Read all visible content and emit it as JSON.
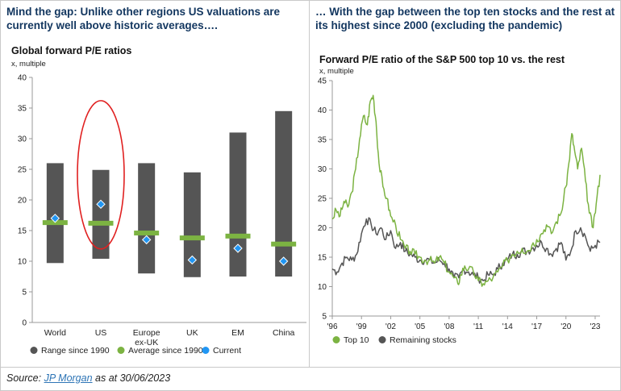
{
  "headlines": {
    "left": "Mind the gap: Unlike other regions US valuations are currently well above historic averages….",
    "right": "… With the gap between the top ten stocks and the rest at its highest since 2000 (excluding the pandemic)"
  },
  "source": {
    "prefix": "Source: ",
    "link": "JP Morgan",
    "suffix": " as at 30/06/2023"
  },
  "chart_data": [
    {
      "type": "bar",
      "title": "Global forward P/E ratios",
      "ylabel": "x, multiple",
      "ylim": [
        0,
        40
      ],
      "yticks": [
        "0",
        "5",
        "10",
        "15",
        "20",
        "25",
        "30",
        "35",
        "40"
      ],
      "categories": [
        "World",
        "US",
        "Europe ex-UK",
        "UK",
        "EM",
        "China"
      ],
      "category_labels": [
        [
          "World"
        ],
        [
          "US"
        ],
        [
          "Europe",
          "ex-UK"
        ],
        [
          "UK"
        ],
        [
          "EM"
        ],
        [
          "China"
        ]
      ],
      "series": [
        {
          "name": "Range since 1990",
          "color": "#555555",
          "low": [
            9.7,
            10.4,
            8.0,
            7.4,
            7.5,
            7.5
          ],
          "high": [
            26.0,
            24.9,
            26.0,
            24.5,
            31.0,
            34.5
          ]
        },
        {
          "name": "Average since 1990",
          "color": "#7cb342",
          "values": [
            16.3,
            16.2,
            14.6,
            13.8,
            14.1,
            12.8
          ]
        },
        {
          "name": "Current",
          "color": "#2196f3",
          "values": [
            17.0,
            19.3,
            13.5,
            10.2,
            12.1,
            10.0
          ]
        }
      ],
      "annotation": "Red ellipse highlighting US",
      "legend": [
        "Range since 1990",
        "Average since 1990",
        "Current"
      ]
    },
    {
      "type": "line",
      "title": "Forward P/E ratio of the S&P 500 top 10 vs. the rest",
      "ylabel": "x, multiple",
      "ylim": [
        5,
        45
      ],
      "yticks": [
        "5",
        "10",
        "15",
        "20",
        "25",
        "30",
        "35",
        "40",
        "45"
      ],
      "xlim": [
        1996,
        2023.5
      ],
      "xticks": [
        1996,
        1999,
        2002,
        2005,
        2008,
        2011,
        2014,
        2017,
        2020,
        2023
      ],
      "xtick_labels": [
        "'96",
        "'99",
        "'02",
        "'05",
        "'08",
        "'11",
        "'14",
        "'17",
        "'20",
        "'23"
      ],
      "series": [
        {
          "name": "Top 10",
          "color": "#7cb342",
          "x": [
            1996.0,
            1996.4,
            1996.8,
            1997.2,
            1997.6,
            1998.0,
            1998.4,
            1998.8,
            1999.2,
            1999.6,
            1999.9,
            2000.2,
            2000.5,
            2000.8,
            2001.2,
            2001.6,
            2002.0,
            2002.5,
            2003.0,
            2003.5,
            2004.0,
            2004.5,
            2005.0,
            2005.5,
            2006.0,
            2006.5,
            2007.0,
            2007.5,
            2008.0,
            2008.5,
            2008.9,
            2009.2,
            2009.6,
            2010.0,
            2010.5,
            2011.0,
            2011.5,
            2012.0,
            2012.5,
            2013.0,
            2013.5,
            2014.0,
            2014.5,
            2015.0,
            2015.5,
            2016.0,
            2016.5,
            2017.0,
            2017.5,
            2018.0,
            2018.5,
            2019.0,
            2019.5,
            2020.0,
            2020.3,
            2020.6,
            2020.9,
            2021.2,
            2021.6,
            2022.0,
            2022.4,
            2022.8,
            2023.1,
            2023.5
          ],
          "values": [
            21.5,
            23.0,
            22.0,
            24.5,
            23.5,
            26.0,
            30.0,
            35.0,
            39.0,
            37.5,
            41.5,
            42.5,
            38.0,
            31.0,
            27.0,
            25.0,
            22.0,
            20.5,
            18.0,
            16.5,
            16.0,
            15.5,
            15.0,
            14.5,
            14.5,
            14.0,
            15.0,
            14.0,
            12.5,
            11.5,
            10.5,
            12.0,
            13.5,
            13.0,
            12.5,
            11.0,
            10.5,
            11.0,
            11.5,
            12.5,
            13.5,
            14.5,
            15.5,
            16.0,
            16.5,
            16.0,
            17.0,
            18.0,
            19.0,
            20.5,
            19.0,
            21.0,
            22.5,
            27.0,
            31.0,
            36.0,
            33.0,
            30.0,
            33.5,
            28.0,
            22.5,
            20.0,
            24.0,
            29.0
          ]
        },
        {
          "name": "Remaining stocks",
          "color": "#555555",
          "x": [
            1996.0,
            1996.5,
            1997.0,
            1997.5,
            1998.0,
            1998.5,
            1999.0,
            1999.5,
            2000.0,
            2000.5,
            2001.0,
            2001.5,
            2002.0,
            2002.5,
            2003.0,
            2003.5,
            2004.0,
            2004.5,
            2005.0,
            2005.5,
            2006.0,
            2006.5,
            2007.0,
            2007.5,
            2008.0,
            2008.5,
            2009.0,
            2009.5,
            2010.0,
            2010.5,
            2011.0,
            2011.5,
            2012.0,
            2012.5,
            2013.0,
            2013.5,
            2014.0,
            2014.5,
            2015.0,
            2015.5,
            2016.0,
            2016.5,
            2017.0,
            2017.5,
            2018.0,
            2018.5,
            2019.0,
            2019.5,
            2020.0,
            2020.5,
            2021.0,
            2021.5,
            2022.0,
            2022.5,
            2023.0,
            2023.5
          ],
          "values": [
            13.0,
            12.5,
            14.0,
            15.0,
            14.5,
            15.5,
            19.0,
            21.5,
            20.5,
            19.0,
            20.0,
            18.0,
            19.5,
            16.5,
            17.5,
            16.0,
            15.5,
            15.0,
            14.5,
            14.5,
            14.5,
            14.0,
            14.5,
            14.0,
            13.0,
            11.5,
            11.5,
            13.0,
            12.5,
            12.0,
            11.5,
            11.0,
            12.0,
            12.0,
            13.0,
            14.0,
            14.5,
            15.5,
            15.5,
            16.0,
            16.0,
            16.5,
            17.0,
            17.5,
            16.5,
            15.5,
            16.5,
            17.5,
            14.5,
            16.0,
            19.5,
            20.0,
            18.5,
            16.0,
            17.0,
            17.5
          ]
        }
      ],
      "legend": [
        "Top 10",
        "Remaining stocks"
      ]
    }
  ]
}
